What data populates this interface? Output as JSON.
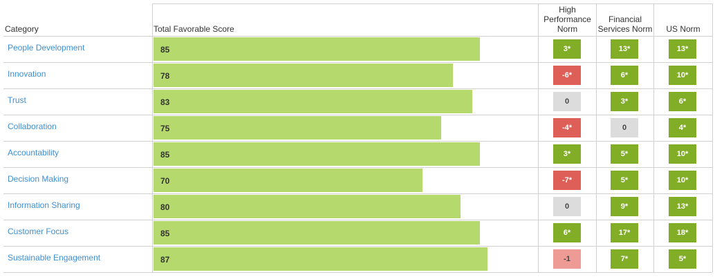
{
  "header": {
    "category": "Category",
    "score": "Total Favorable Score",
    "norms": [
      "High Performance Norm",
      "Financial Services Norm",
      "US Norm"
    ]
  },
  "score_range": [
    0,
    100
  ],
  "bar_color": "#b5d96c",
  "rows": [
    {
      "category": "People Development",
      "score": 85,
      "norms": [
        {
          "label": "3*",
          "color": "#82ad27"
        },
        {
          "label": "13*",
          "color": "#82ad27"
        },
        {
          "label": "13*",
          "color": "#82ad27"
        }
      ]
    },
    {
      "category": "Innovation",
      "score": 78,
      "norms": [
        {
          "label": "-6*",
          "color": "#de5f58"
        },
        {
          "label": "6*",
          "color": "#82ad27"
        },
        {
          "label": "10*",
          "color": "#82ad27"
        }
      ]
    },
    {
      "category": "Trust",
      "score": 83,
      "norms": [
        {
          "label": "0",
          "color": "#dcdcdc"
        },
        {
          "label": "3*",
          "color": "#82ad27"
        },
        {
          "label": "6*",
          "color": "#82ad27"
        }
      ]
    },
    {
      "category": "Collaboration",
      "score": 75,
      "norms": [
        {
          "label": "-4*",
          "color": "#de5f58"
        },
        {
          "label": "0",
          "color": "#dcdcdc"
        },
        {
          "label": "4*",
          "color": "#82ad27"
        }
      ]
    },
    {
      "category": "Accountability",
      "score": 85,
      "norms": [
        {
          "label": "3*",
          "color": "#82ad27"
        },
        {
          "label": "5*",
          "color": "#82ad27"
        },
        {
          "label": "10*",
          "color": "#82ad27"
        }
      ]
    },
    {
      "category": "Decision Making",
      "score": 70,
      "norms": [
        {
          "label": "-7*",
          "color": "#de5f58"
        },
        {
          "label": "5*",
          "color": "#82ad27"
        },
        {
          "label": "10*",
          "color": "#82ad27"
        }
      ]
    },
    {
      "category": "Information Sharing",
      "score": 80,
      "norms": [
        {
          "label": "0",
          "color": "#dcdcdc"
        },
        {
          "label": "9*",
          "color": "#82ad27"
        },
        {
          "label": "13*",
          "color": "#82ad27"
        }
      ]
    },
    {
      "category": "Customer Focus",
      "score": 85,
      "norms": [
        {
          "label": "6*",
          "color": "#82ad27"
        },
        {
          "label": "17*",
          "color": "#82ad27"
        },
        {
          "label": "18*",
          "color": "#82ad27"
        }
      ]
    },
    {
      "category": "Sustainable Engagement",
      "score": 87,
      "norms": [
        {
          "label": "-1",
          "color": "#ee9a95"
        },
        {
          "label": "7*",
          "color": "#82ad27"
        },
        {
          "label": "5*",
          "color": "#82ad27"
        }
      ]
    }
  ]
}
